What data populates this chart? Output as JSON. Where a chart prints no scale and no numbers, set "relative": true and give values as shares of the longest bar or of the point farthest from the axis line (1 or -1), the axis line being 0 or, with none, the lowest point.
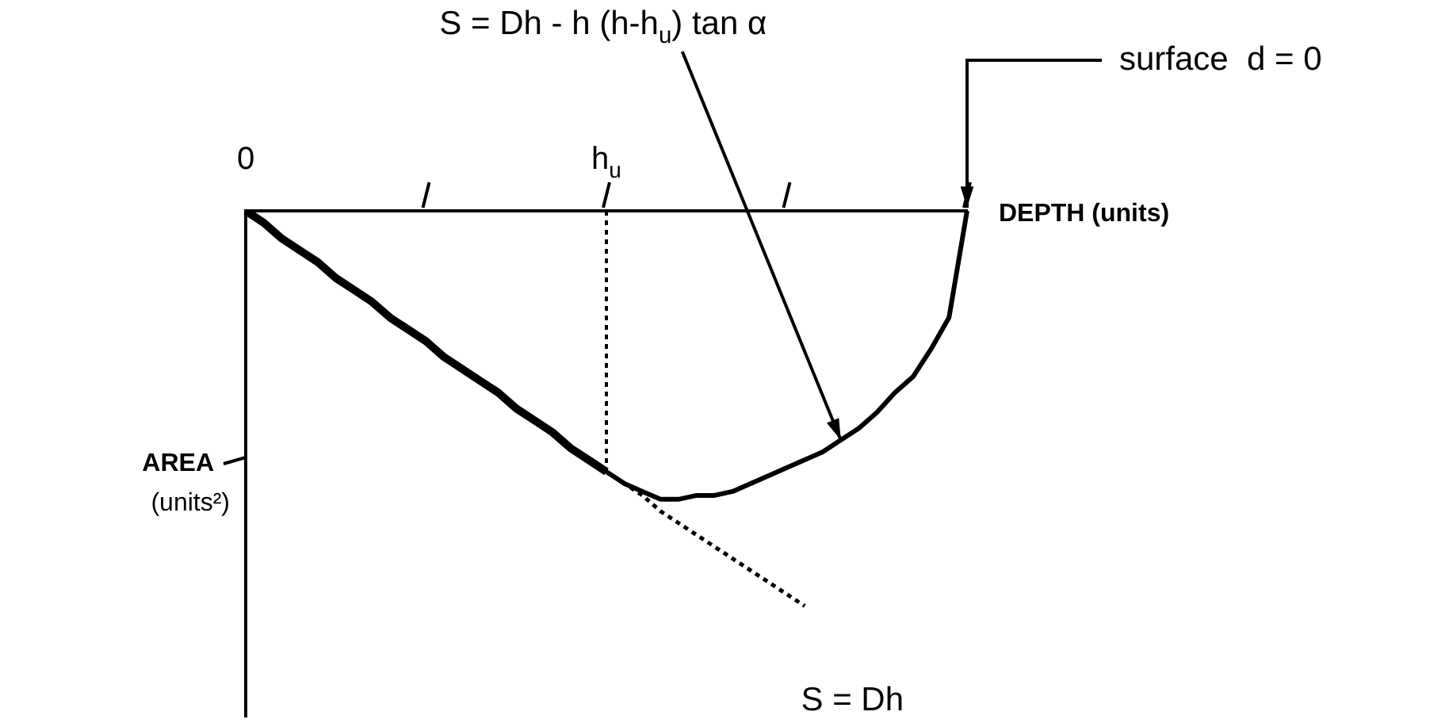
{
  "chart_data": {
    "type": "line",
    "relative": true,
    "xlabel": "DEPTH (units)",
    "ylabel": "AREA (units²)",
    "categories": [
      "0",
      null,
      null,
      null,
      null,
      null,
      null,
      null,
      null,
      null,
      null,
      null,
      null,
      null,
      null,
      null,
      null,
      null,
      null,
      null,
      "h$_{u}$",
      null,
      null,
      null,
      null,
      null,
      null,
      null,
      null,
      null,
      null,
      null,
      null,
      null,
      null,
      null,
      null,
      null,
      null,
      null,
      null
    ],
    "series": [
      {
        "color": "#000000",
        "line_style": "solid",
        "values": [
          0,
          -0.03,
          -0.07,
          -0.1,
          -0.13,
          -0.17,
          -0.2,
          -0.23,
          -0.27,
          -0.3,
          -0.33,
          -0.37,
          -0.4,
          -0.43,
          -0.46,
          -0.5,
          -0.53,
          -0.56,
          -0.6,
          -0.63,
          -0.66,
          null,
          null,
          null,
          null,
          null,
          null,
          null,
          null,
          null,
          null,
          null,
          null,
          null,
          null,
          null,
          null,
          null,
          null,
          null,
          null
        ]
      },
      {
        "color": "#000000",
        "line_style": "dotted",
        "values": [
          null,
          null,
          null,
          null,
          null,
          null,
          null,
          null,
          null,
          null,
          null,
          null,
          null,
          null,
          null,
          null,
          null,
          null,
          null,
          null,
          -0.66,
          -0.69,
          -0.72,
          -0.76,
          -0.79,
          -0.82,
          -0.85,
          -0.88,
          -0.91,
          -0.94,
          -0.97,
          -1,
          null,
          null,
          null,
          null,
          null,
          null,
          null,
          null,
          null
        ]
      },
      {
        "color": "#000000",
        "line_style": "solid",
        "values": [
          null,
          null,
          null,
          null,
          null,
          null,
          null,
          null,
          null,
          null,
          null,
          null,
          null,
          null,
          null,
          null,
          null,
          null,
          null,
          null,
          -0.66,
          -0.69,
          -0.71,
          -0.73,
          -0.73,
          -0.72,
          -0.72,
          -0.71,
          -0.69,
          -0.67,
          -0.65,
          -0.63,
          -0.61,
          -0.58,
          -0.55,
          -0.51,
          -0.46,
          -0.42,
          -0.35,
          -0.27,
          0
        ]
      }
    ],
    "ref_lines": [
      {
        "axis": "x",
        "value": "h$_{u}$",
        "line_style": "dotted",
        "color": "#000000"
      }
    ],
    "annotations": [
      "S = Dh - h (h-h$_{u}$) tan α",
      "S = Dh",
      "surface  d = 0"
    ],
    "grid": false,
    "legend": false,
    "marker": "none"
  }
}
